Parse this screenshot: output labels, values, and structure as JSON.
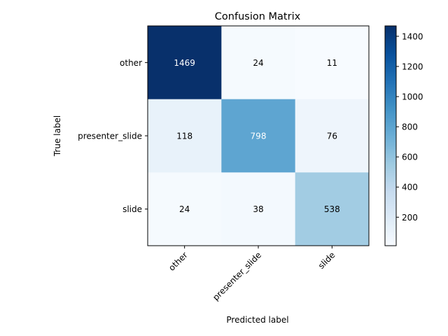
{
  "chart_data": {
    "type": "heatmap",
    "title": "Confusion Matrix",
    "xlabel": "Predicted label",
    "ylabel": "True label",
    "x_categories": [
      "other",
      "presenter_slide",
      "slide"
    ],
    "y_categories": [
      "other",
      "presenter_slide",
      "slide"
    ],
    "values": [
      [
        1469,
        24,
        11
      ],
      [
        118,
        798,
        76
      ],
      [
        24,
        38,
        538
      ]
    ],
    "colormap": "Blues",
    "color_range": [
      11,
      1469
    ],
    "colorbar_ticks": [
      "200",
      "400",
      "600",
      "800",
      "1000",
      "1200",
      "1400"
    ],
    "colorbar_tick_values": [
      200,
      400,
      600,
      800,
      1000,
      1200,
      1400
    ],
    "cell_text_colors": {
      "dark_cell": "#ffffff",
      "light_cell": "#000000"
    }
  }
}
